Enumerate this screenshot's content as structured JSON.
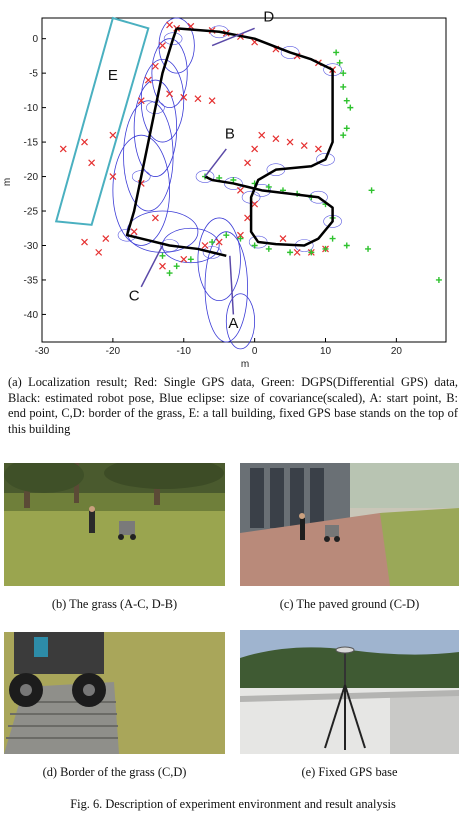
{
  "figure": {
    "caption_a": "(a) Localization result; Red: Single GPS data, Green: DGPS(Differential GPS) data, Black: estimated robot pose, Blue eclipse: size of covariance(scaled), A: start point, B: end point, C,D: border of the grass, E: a tall building, fixed GPS base stands on the top of this building",
    "subcaptions": {
      "b": "(b) The grass (A-C, D-B)",
      "c": "(c) The paved ground (C-D)",
      "d": "(d) Border of the grass (C,D)",
      "e": "(e) Fixed GPS base"
    },
    "main_caption": "Fig. 6.   Description of experiment environment and result analysis"
  },
  "chart_data": {
    "type": "scatter",
    "title": "",
    "xlabel": "m",
    "ylabel": "m",
    "xlim": [
      -30,
      27
    ],
    "ylim": [
      -44,
      3
    ],
    "x_ticks": [
      "-30",
      "-20",
      "-10",
      "0",
      "10",
      "20"
    ],
    "y_ticks": [
      "0",
      "-5",
      "-10",
      "-15",
      "-20",
      "-25",
      "-30",
      "-35",
      "-40"
    ],
    "grid": false,
    "series": [
      {
        "color": "#e53030",
        "marker": "x",
        "points": [
          [
            -12,
            2
          ],
          [
            -11,
            1.5
          ],
          [
            -9,
            1.8
          ],
          [
            -6,
            1.2
          ],
          [
            -4,
            0.8
          ],
          [
            -2,
            0.3
          ],
          [
            0,
            -0.5
          ],
          [
            3,
            -1.5
          ],
          [
            6,
            -2.5
          ],
          [
            9,
            -3.5
          ],
          [
            11,
            -4.5
          ],
          [
            -13,
            -1
          ],
          [
            -14,
            -4
          ],
          [
            -15,
            -6
          ],
          [
            -12,
            -8
          ],
          [
            -10,
            -8.5
          ],
          [
            -8,
            -8.7
          ],
          [
            -6,
            -9
          ],
          [
            -16,
            -9
          ],
          [
            -20,
            -14
          ],
          [
            -24,
            -15
          ],
          [
            -27,
            -16
          ],
          [
            -23,
            -18
          ],
          [
            -20,
            -20
          ],
          [
            -16,
            -21
          ],
          [
            -14,
            -26
          ],
          [
            -17,
            -28
          ],
          [
            -21,
            -29
          ],
          [
            -24,
            -29.5
          ],
          [
            -22,
            -31
          ],
          [
            -13,
            -33
          ],
          [
            -10,
            -32
          ],
          [
            -7,
            -30
          ],
          [
            -5,
            -29.5
          ],
          [
            -2,
            -28.5
          ],
          [
            -2,
            -22
          ],
          [
            -1,
            -26
          ],
          [
            0,
            -24
          ],
          [
            -1,
            -18
          ],
          [
            0,
            -16
          ],
          [
            1,
            -14
          ],
          [
            3,
            -14.5
          ],
          [
            5,
            -15
          ],
          [
            7,
            -15.5
          ],
          [
            9,
            -16
          ],
          [
            4,
            -29
          ],
          [
            6,
            -31
          ],
          [
            8,
            -31
          ],
          [
            10,
            -30.5
          ]
        ]
      },
      {
        "color": "#2ec22e",
        "marker": "plus",
        "points": [
          [
            11.5,
            -2
          ],
          [
            12,
            -3.5
          ],
          [
            12.5,
            -5
          ],
          [
            12.5,
            -7
          ],
          [
            13,
            -9
          ],
          [
            13.5,
            -10
          ],
          [
            13,
            -13
          ],
          [
            12.5,
            -14
          ],
          [
            -7,
            -20
          ],
          [
            -5,
            -20.2
          ],
          [
            -3,
            -20.5
          ],
          [
            0,
            -21
          ],
          [
            2,
            -21.5
          ],
          [
            4,
            -22
          ],
          [
            6,
            -22.5
          ],
          [
            8,
            -23
          ],
          [
            10,
            -24
          ],
          [
            11,
            -26
          ],
          [
            11,
            -29
          ],
          [
            10,
            -30.5
          ],
          [
            8,
            -31
          ],
          [
            5,
            -31
          ],
          [
            2,
            -30.5
          ],
          [
            0,
            -30
          ],
          [
            -2,
            -29
          ],
          [
            -4,
            -28.5
          ],
          [
            -6,
            -29.5
          ],
          [
            -9,
            -32
          ],
          [
            -11,
            -33
          ],
          [
            -13,
            -31.5
          ],
          [
            16.5,
            -22
          ],
          [
            13,
            -30
          ],
          [
            16,
            -30.5
          ],
          [
            26,
            -35
          ],
          [
            -12,
            -34
          ]
        ]
      }
    ],
    "paths": [
      {
        "color": "#000000",
        "points": [
          [
            -11,
            1.5
          ],
          [
            -5,
            1
          ],
          [
            0,
            0
          ],
          [
            5,
            -2
          ],
          [
            8,
            -3
          ],
          [
            11,
            -4.5
          ],
          [
            11,
            -15
          ],
          [
            10,
            -17.5
          ],
          [
            8,
            -18.5
          ],
          [
            3,
            -19
          ],
          [
            0.5,
            -20.5
          ],
          [
            -0.5,
            -23
          ],
          [
            -0.5,
            -28
          ],
          [
            0.5,
            -29.5
          ],
          [
            3,
            -29.8
          ],
          [
            7,
            -30
          ],
          [
            9,
            -29
          ],
          [
            11,
            -26.5
          ],
          [
            11,
            -24.5
          ],
          [
            9,
            -23
          ],
          [
            5,
            -22.5
          ],
          [
            1,
            -22
          ],
          [
            -1,
            -21.5
          ],
          [
            -3,
            -21
          ],
          [
            -6,
            -20.5
          ],
          [
            -7,
            -20
          ]
        ]
      },
      {
        "color": "#000000",
        "points": [
          [
            -4,
            -31.5
          ],
          [
            -6,
            -31
          ],
          [
            -8,
            -30.5
          ],
          [
            -12,
            -30
          ],
          [
            -16,
            -29
          ],
          [
            -18,
            -28.5
          ],
          [
            -17,
            -25
          ],
          [
            -16,
            -20
          ],
          [
            -15,
            -15
          ],
          [
            -14,
            -10
          ],
          [
            -13,
            -5
          ],
          [
            -11.5,
            0
          ],
          [
            -11,
            1.5
          ]
        ]
      }
    ],
    "ellipses": [
      [
        -11,
        -1,
        2.5,
        4
      ],
      [
        -12,
        -5,
        2.5,
        5
      ],
      [
        -13,
        -9,
        3,
        6
      ],
      [
        -14,
        -13,
        3,
        7
      ],
      [
        -15,
        -17,
        3.5,
        8
      ],
      [
        -16,
        -22,
        4,
        8
      ],
      [
        -13,
        -28,
        5,
        3
      ],
      [
        -9,
        -30,
        4,
        2.5
      ],
      [
        -5,
        -32,
        3,
        6
      ],
      [
        -4,
        -36,
        3,
        8
      ],
      [
        -2,
        -41,
        2,
        4
      ]
    ],
    "building_box": [
      [
        -28,
        -26.5
      ],
      [
        -23,
        -27
      ],
      [
        -15,
        1.5
      ],
      [
        -20,
        3
      ]
    ],
    "labels": [
      {
        "text": "A",
        "x": -3,
        "y": -42
      },
      {
        "text": "B",
        "x": -3.5,
        "y": -14.5
      },
      {
        "text": "C",
        "x": -17,
        "y": -38
      },
      {
        "text": "D",
        "x": 2,
        "y": 2.5
      },
      {
        "text": "E",
        "x": -20,
        "y": -6
      }
    ]
  }
}
